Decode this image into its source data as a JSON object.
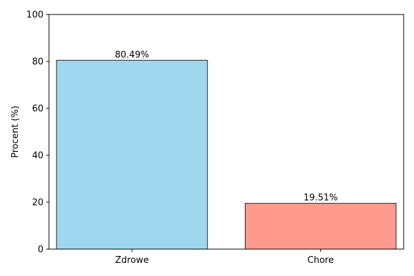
{
  "chart_data": {
    "type": "bar",
    "title": "",
    "xlabel": "",
    "ylabel": "Procent (%)",
    "ylim": [
      0,
      100
    ],
    "yticks": [
      0,
      20,
      40,
      60,
      80,
      100
    ],
    "grid": false,
    "legend": "none",
    "categories": [
      "Zdrowe",
      "Chore"
    ],
    "values": [
      80.49,
      19.51
    ],
    "data_labels": [
      "80.49%",
      "19.51%"
    ],
    "colors": [
      "#a0d6ee",
      "#fe9a8e"
    ],
    "edge_color": "#262626"
  }
}
